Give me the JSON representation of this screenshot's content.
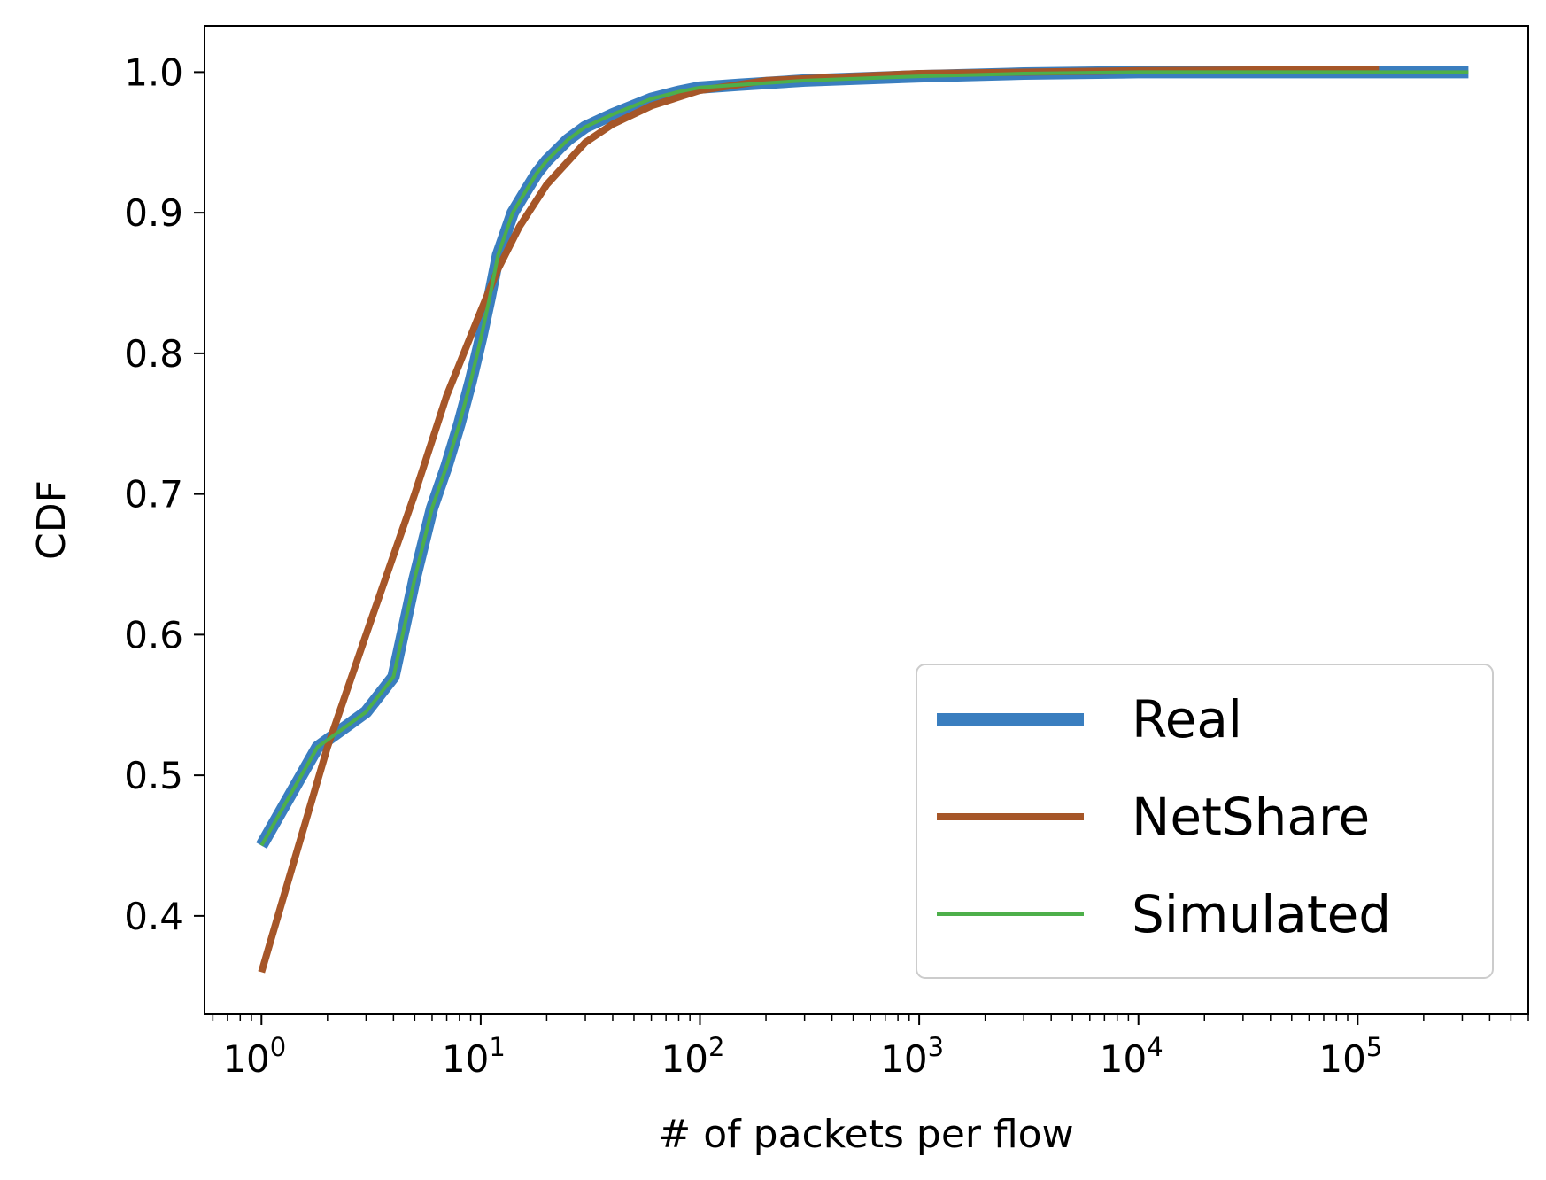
{
  "chart_data": {
    "type": "line",
    "title": "",
    "xlabel": "# of packets per flow",
    "ylabel": "CDF",
    "xscale": "log",
    "xlim": [
      0.55,
      600000
    ],
    "ylim": [
      0.33,
      1.033
    ],
    "grid": false,
    "legend_position": "lower right",
    "x_ticks": [
      {
        "value": 1,
        "base": "10",
        "exp": "0"
      },
      {
        "value": 10,
        "base": "10",
        "exp": "1"
      },
      {
        "value": 100,
        "base": "10",
        "exp": "2"
      },
      {
        "value": 1000,
        "base": "10",
        "exp": "3"
      },
      {
        "value": 10000,
        "base": "10",
        "exp": "4"
      },
      {
        "value": 100000,
        "base": "10",
        "exp": "5"
      }
    ],
    "y_ticks": [
      {
        "value": 0.4,
        "label": "0.4"
      },
      {
        "value": 0.5,
        "label": "0.5"
      },
      {
        "value": 0.6,
        "label": "0.6"
      },
      {
        "value": 0.7,
        "label": "0.7"
      },
      {
        "value": 0.8,
        "label": "0.8"
      },
      {
        "value": 0.9,
        "label": "0.9"
      },
      {
        "value": 1.0,
        "label": "1.0"
      }
    ],
    "series": [
      {
        "name": "Real",
        "color": "#3a7ebf",
        "x": [
          1,
          1.8,
          3,
          4,
          5,
          6,
          7,
          8,
          9,
          10,
          11,
          12,
          14,
          16,
          18,
          20,
          25,
          30,
          40,
          60,
          80,
          100,
          150,
          300,
          1000,
          3000,
          10000,
          100000,
          320000
        ],
        "y": [
          0.45,
          0.52,
          0.545,
          0.57,
          0.64,
          0.69,
          0.72,
          0.75,
          0.78,
          0.81,
          0.84,
          0.87,
          0.9,
          0.915,
          0.928,
          0.937,
          0.952,
          0.961,
          0.97,
          0.981,
          0.986,
          0.989,
          0.991,
          0.994,
          0.997,
          0.999,
          1.0,
          1.0,
          1.0
        ]
      },
      {
        "name": "NetShare",
        "color": "#a65628",
        "x": [
          1,
          2,
          3,
          5,
          7,
          10,
          12,
          15,
          20,
          30,
          40,
          60,
          100,
          200,
          1000,
          10000,
          125000
        ],
        "y": [
          0.36,
          0.52,
          0.6,
          0.7,
          0.77,
          0.83,
          0.86,
          0.89,
          0.92,
          0.95,
          0.963,
          0.976,
          0.987,
          0.994,
          0.999,
          1.001,
          1.002
        ]
      },
      {
        "name": "Simulated",
        "color": "#4daf4a",
        "x": [
          1,
          1.8,
          3,
          4,
          5,
          6,
          7,
          8,
          9,
          10,
          11,
          12,
          14,
          16,
          18,
          20,
          25,
          30,
          40,
          60,
          80,
          100,
          150,
          300,
          1000,
          3000,
          10000,
          100000,
          320000
        ],
        "y": [
          0.45,
          0.52,
          0.545,
          0.57,
          0.64,
          0.69,
          0.72,
          0.75,
          0.78,
          0.81,
          0.84,
          0.87,
          0.9,
          0.915,
          0.928,
          0.937,
          0.952,
          0.961,
          0.97,
          0.981,
          0.986,
          0.989,
          0.991,
          0.994,
          0.997,
          0.999,
          1.0,
          1.0,
          1.0
        ]
      }
    ]
  }
}
